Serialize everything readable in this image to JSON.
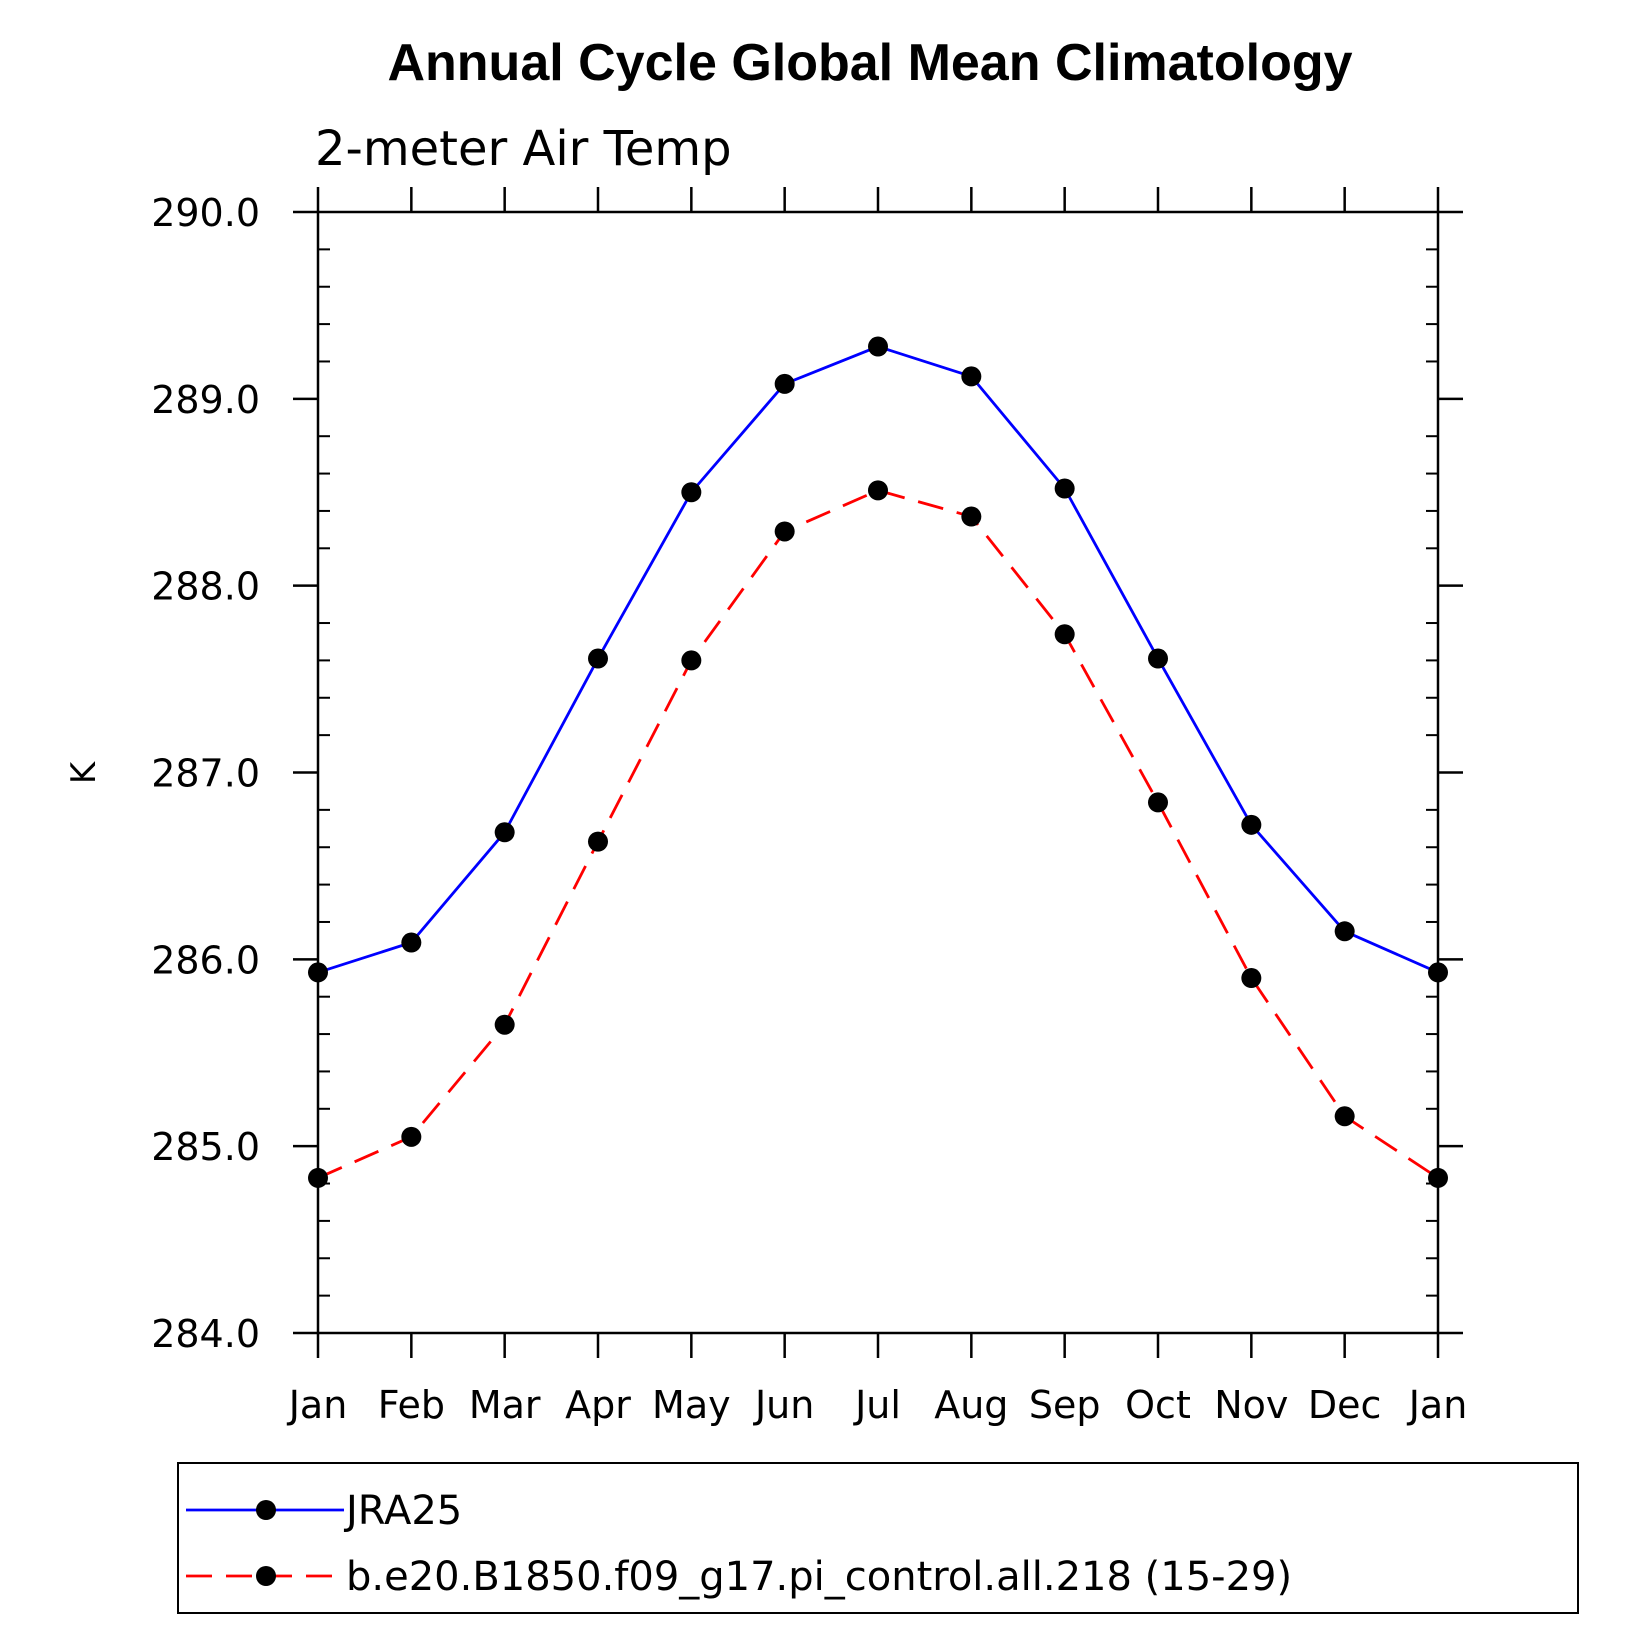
{
  "chart_data": {
    "type": "line",
    "title": "Annual Cycle Global Mean Climatology",
    "subtitle": "2-meter Air Temp",
    "ylabel": "K",
    "xlabel": "",
    "categories": [
      "Jan",
      "Feb",
      "Mar",
      "Apr",
      "May",
      "Jun",
      "Jul",
      "Aug",
      "Sep",
      "Oct",
      "Nov",
      "Dec",
      "Jan"
    ],
    "ylim": [
      284.0,
      290.0
    ],
    "yticks": [
      "284.0",
      "285.0",
      "286.0",
      "287.0",
      "288.0",
      "289.0",
      "290.0"
    ],
    "grid": false,
    "legend_position": "bottom",
    "series": [
      {
        "name": "JRA25",
        "color": "#0000ff",
        "line_style": "solid",
        "marker": "filled-circle",
        "values": [
          285.93,
          286.09,
          286.68,
          287.61,
          288.5,
          289.08,
          289.28,
          289.12,
          288.52,
          287.61,
          286.72,
          286.15,
          285.93
        ]
      },
      {
        "name": "b.e20.B1850.f09_g17.pi_control.all.218 (15-29)",
        "color": "#ff0000",
        "line_style": "dashed",
        "marker": "filled-circle",
        "values": [
          284.83,
          285.05,
          285.65,
          286.63,
          287.6,
          288.29,
          288.51,
          288.37,
          287.74,
          286.84,
          285.9,
          285.16,
          284.83
        ]
      }
    ]
  }
}
